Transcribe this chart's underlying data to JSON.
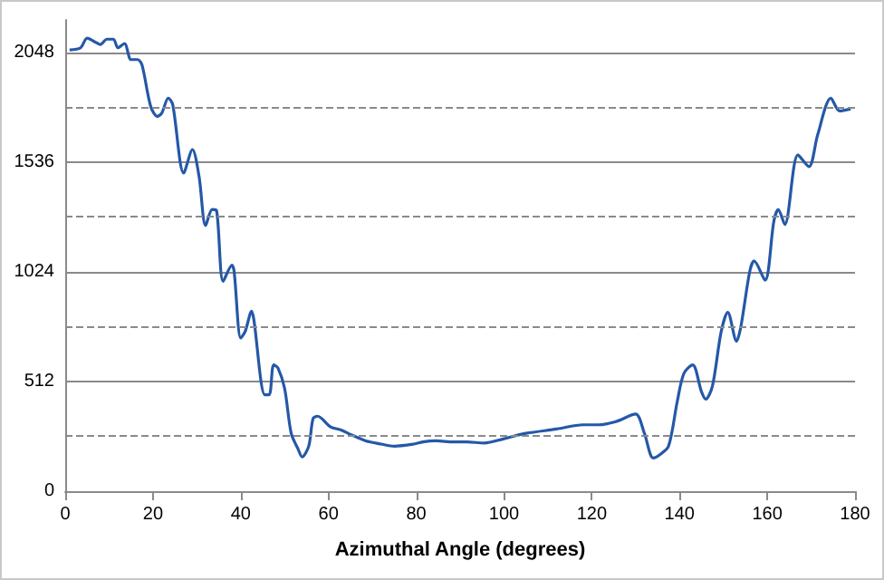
{
  "chart_data": {
    "type": "line",
    "xlabel": "Azimuthal Angle (degrees)",
    "x": [
      1,
      3.5,
      5,
      7,
      8,
      9.5,
      11,
      12,
      13.5,
      15,
      16.5,
      17.5,
      19.5,
      21,
      22,
      23.5,
      24.5,
      27,
      29,
      30.5,
      32,
      33.5,
      34.5,
      36,
      38,
      38.5,
      40,
      41,
      42.5,
      43,
      45.5,
      46.5,
      47.5,
      48.5,
      50,
      51.5,
      53,
      54,
      55.5,
      56.5,
      57.5,
      60.5,
      63,
      65,
      68.5,
      72,
      75,
      79.5,
      81.5,
      84.5,
      88.5,
      91.5,
      95.5,
      100,
      105,
      112,
      118,
      121.5,
      125.5,
      130,
      132,
      134,
      135.5,
      137.5,
      139.5,
      141,
      143,
      145,
      146,
      147.5,
      149.5,
      151,
      153,
      154,
      156,
      157,
      159.5,
      161.5,
      162.5,
      164,
      167,
      169.5,
      171.5,
      174.5,
      176.5,
      179
    ],
    "values": [
      2060,
      2070,
      2115,
      2095,
      2085,
      2110,
      2110,
      2070,
      2090,
      2015,
      2015,
      1990,
      1795,
      1750,
      1765,
      1835,
      1805,
      1485,
      1595,
      1470,
      1240,
      1315,
      1310,
      980,
      1055,
      1025,
      715,
      745,
      840,
      800,
      450,
      450,
      590,
      575,
      480,
      270,
      200,
      160,
      210,
      340,
      350,
      300,
      285,
      265,
      235,
      220,
      210,
      220,
      230,
      235,
      230,
      230,
      225,
      245,
      270,
      290,
      310,
      310,
      325,
      360,
      270,
      155,
      170,
      210,
      420,
      550,
      590,
      465,
      430,
      490,
      745,
      835,
      700,
      770,
      1025,
      1075,
      985,
      1260,
      1315,
      1245,
      1570,
      1515,
      1665,
      1835,
      1775,
      1785
    ],
    "color": "#2458a8",
    "xlim": [
      0,
      180
    ],
    "xticks": [
      0,
      20,
      40,
      60,
      80,
      100,
      120,
      140,
      160,
      180
    ],
    "ylim": [
      0,
      2200
    ],
    "yticks": [
      0,
      512,
      1024,
      1536,
      2048
    ],
    "grid": "y",
    "marker": "none",
    "line_style": "solid",
    "ref_lines": [
      {
        "axis": "y",
        "value": 256,
        "color": "#8a8a8a",
        "line_style": "dashed"
      },
      {
        "axis": "y",
        "value": 768,
        "color": "#8a8a8a",
        "line_style": "dashed"
      },
      {
        "axis": "y",
        "value": 1280,
        "color": "#8a8a8a",
        "line_style": "dashed"
      },
      {
        "axis": "y",
        "value": 1792,
        "color": "#8a8a8a",
        "line_style": "dashed"
      }
    ]
  }
}
